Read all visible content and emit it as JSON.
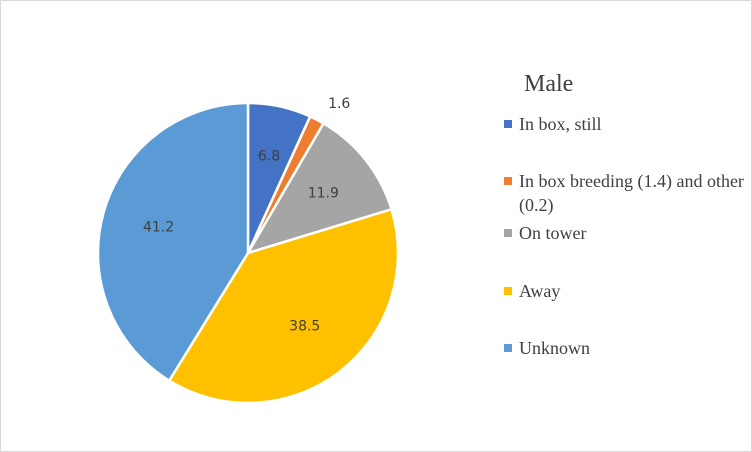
{
  "chart_data": {
    "type": "pie",
    "title": "Male",
    "categories": [
      "In box, still",
      "In box breeding (1.4) and other (0.2)",
      "On tower",
      "Away",
      "Unknown"
    ],
    "values": [
      6.8,
      1.6,
      11.9,
      38.5,
      41.2
    ],
    "data_labels": [
      "6.8",
      "1.6",
      "11.9",
      "38.5",
      "41.2"
    ],
    "colors": [
      "#4472c4",
      "#ed7d31",
      "#a5a5a5",
      "#ffc000",
      "#5b9bd5"
    ],
    "legend_position": "right",
    "start_angle": "12 o'clock, clockwise"
  }
}
